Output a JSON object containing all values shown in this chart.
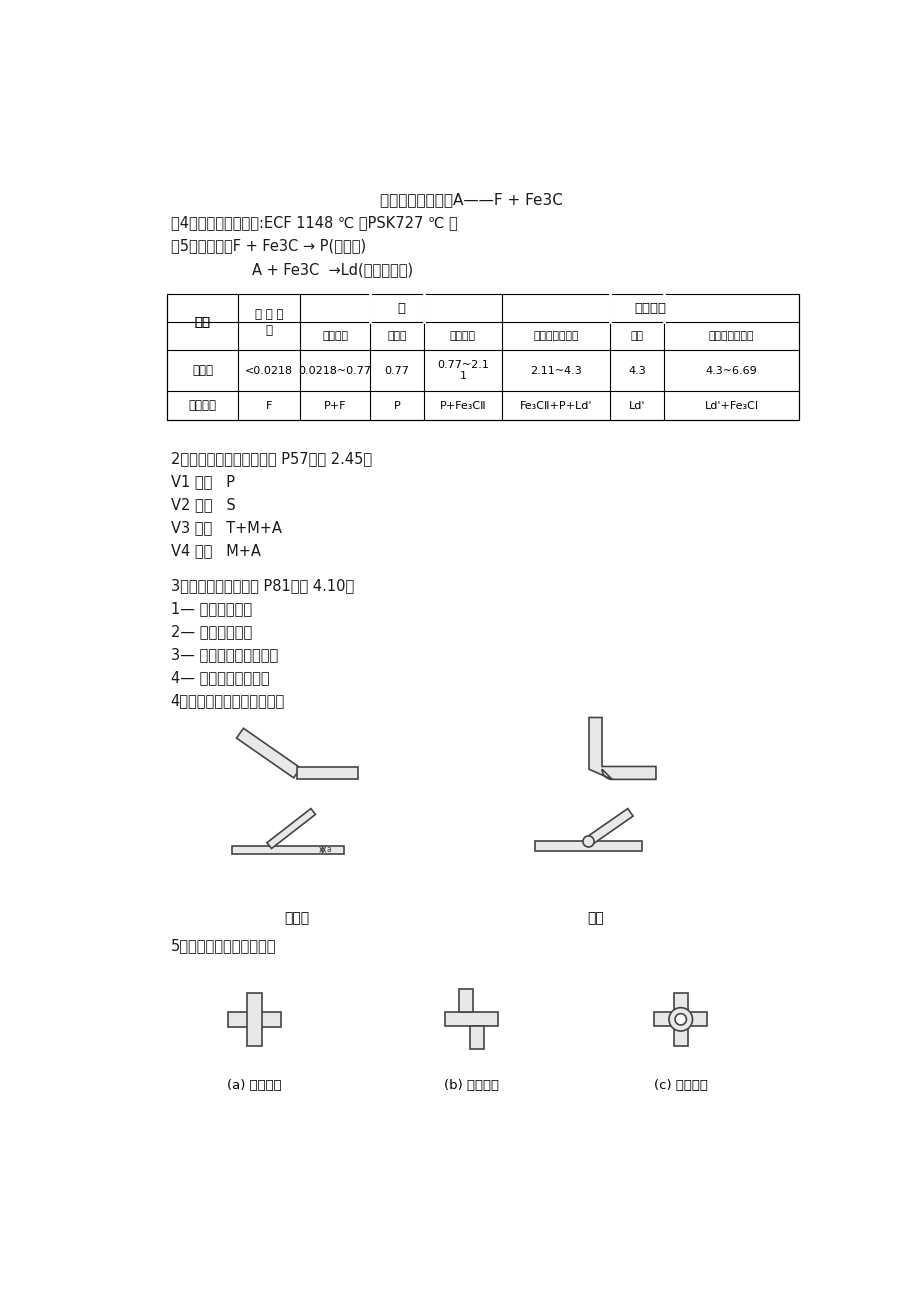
{
  "bg_color": "#ffffff",
  "page_width": 9.2,
  "page_height": 13.02,
  "lm": 0.72,
  "line1": "共析转变反应式：A——F + Fe3C",
  "line2": "（4）、二个重要温度:ECF 1148 ℃ 、PSK727 ℃ 。",
  "line3": "（5）、公式：F + Fe3C → P(珠光体)",
  "line4_indent": "A + Fe3C  →Ld(高温莱氏体)",
  "col_widths": [
    0.92,
    0.8,
    0.9,
    0.7,
    1.0,
    1.4,
    0.7,
    1.38
  ],
  "section2_title": "2、共析碳钢连续冷却转变 P57（图 2.45）",
  "cooling_lines": [
    "V1 炉冷   P",
    "V2 空冷   S",
    "V3 油冷   T+M+A",
    "V4 水冷   M+A"
  ],
  "section3_title": "3、各种淬火方法示意 P81（图 4.10）",
  "quench_lines": [
    "1— 单介质淬火法",
    "2— 双介质淬火法",
    "3— 马氏体分级淬火方法",
    "4— 贝氏体等温淬火法",
    "4、铸铁壁之间避免锐角连接"
  ],
  "label_left": "不合理",
  "label_right": "合理",
  "section5_title": "5、铸件壁或筋的连接形式",
  "joint_labels": [
    "(a) 交叉接头",
    "(b) 交错接头",
    "(c) 环状接头"
  ],
  "fc_shape": "#e8e8e8",
  "ec_shape": "#444444"
}
